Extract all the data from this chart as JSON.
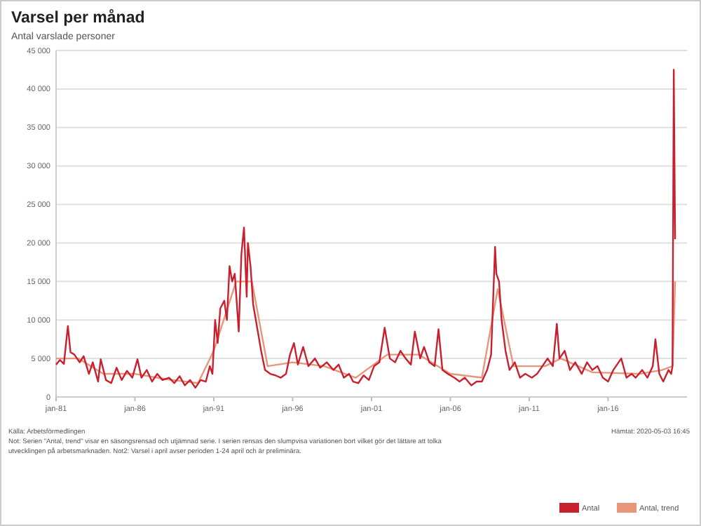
{
  "chart_data": {
    "type": "line",
    "title": "Varsel per månad",
    "subtitle": "Antal varslade personer",
    "annotations": [
      "Källa: Arbetsförmedlingen",
      "Not: Serien \"Antal, trend\" visar en säsongsrensad och utjämnad serie. I serien rensas den slumpvisa variationen bort vilket gör det lättare att tolka utvecklingen på arbetsmarknaden. Not2: Varsel i april avser perioden 1-24 april och är preliminära.",
      "Hämtat: 2020-05-03 16:45"
    ],
    "xlim": [
      "1981-01",
      "2021-01"
    ],
    "xticks": [
      {
        "value": "1981-01",
        "label": "jan-81"
      },
      {
        "value": "1986-01",
        "label": "jan-86"
      },
      {
        "value": "1991-01",
        "label": "jan-91"
      },
      {
        "value": "1996-01",
        "label": "jan-96"
      },
      {
        "value": "2001-01",
        "label": "jan-01"
      },
      {
        "value": "2006-01",
        "label": "jan-06"
      },
      {
        "value": "2011-01",
        "label": "jan-11"
      },
      {
        "value": "2016-01",
        "label": "jan-16"
      }
    ],
    "ylim": [
      0,
      45000
    ],
    "yticks": [
      {
        "value": 0,
        "label": "0"
      },
      {
        "value": 5000,
        "label": "5 000"
      },
      {
        "value": 10000,
        "label": "10 000"
      },
      {
        "value": 15000,
        "label": "15 000"
      },
      {
        "value": 20000,
        "label": "20 000"
      },
      {
        "value": 25000,
        "label": "25 000"
      },
      {
        "value": 30000,
        "label": "30 000"
      },
      {
        "value": 35000,
        "label": "35 000"
      },
      {
        "value": 40000,
        "label": "40 000"
      },
      {
        "value": 45000,
        "label": "45 000"
      }
    ],
    "grid": "y",
    "legend": "bottom right",
    "line_style": "solid",
    "series": [
      {
        "name": "Antal, trend",
        "color": "#e8957a",
        "x": [
          "1981-01",
          "1982-06",
          "1984-01",
          "1986-01",
          "1988-01",
          "1990-01",
          "1991-01",
          "1992-06",
          "1993-06",
          "1994-06",
          "1996-01",
          "1998-01",
          "2000-01",
          "2002-01",
          "2004-01",
          "2006-01",
          "2008-01",
          "2009-01",
          "2010-01",
          "2012-01",
          "2013-01",
          "2015-01",
          "2018-01",
          "2019-06",
          "2020-02",
          "2020-03",
          "2020-04"
        ],
        "values": [
          5000,
          5000,
          3000,
          3000,
          2300,
          1800,
          6000,
          15000,
          15000,
          4000,
          4500,
          4000,
          2500,
          5500,
          5500,
          3000,
          2500,
          14000,
          4000,
          4000,
          5000,
          3200,
          3000,
          3500,
          4000,
          9000,
          15000
        ]
      },
      {
        "name": "Antal",
        "color": "#c8202f",
        "x": [
          "1981-01",
          "1981-04",
          "1981-07",
          "1981-10",
          "1981-12",
          "1982-03",
          "1982-07",
          "1982-10",
          "1983-02",
          "1983-05",
          "1983-09",
          "1983-11",
          "1984-03",
          "1984-07",
          "1984-11",
          "1985-03",
          "1985-07",
          "1985-11",
          "1986-03",
          "1986-06",
          "1986-10",
          "1987-02",
          "1987-06",
          "1987-10",
          "1988-03",
          "1988-07",
          "1988-11",
          "1989-03",
          "1989-07",
          "1989-11",
          "1990-03",
          "1990-07",
          "1990-10",
          "1990-12",
          "1991-02",
          "1991-04",
          "1991-06",
          "1991-09",
          "1991-11",
          "1992-01",
          "1992-03",
          "1992-05",
          "1992-08",
          "1992-10",
          "1992-12",
          "1993-02",
          "1993-03",
          "1993-05",
          "1993-07",
          "1993-09",
          "1993-11",
          "1994-01",
          "1994-04",
          "1994-08",
          "1994-12",
          "1995-04",
          "1995-08",
          "1995-11",
          "1996-02",
          "1996-05",
          "1996-09",
          "1997-01",
          "1997-06",
          "1997-10",
          "1998-03",
          "1998-08",
          "1998-12",
          "1999-04",
          "1999-08",
          "1999-11",
          "2000-03",
          "2000-07",
          "2000-11",
          "2001-03",
          "2001-07",
          "2001-11",
          "2002-03",
          "2002-07",
          "2002-11",
          "2003-03",
          "2003-07",
          "2003-10",
          "2004-02",
          "2004-05",
          "2004-09",
          "2005-01",
          "2005-04",
          "2005-07",
          "2005-11",
          "2006-04",
          "2006-08",
          "2006-12",
          "2007-05",
          "2007-09",
          "2008-01",
          "2008-05",
          "2008-08",
          "2008-11",
          "2008-12",
          "2009-02",
          "2009-04",
          "2009-07",
          "2009-10",
          "2010-02",
          "2010-06",
          "2010-10",
          "2011-03",
          "2011-07",
          "2011-11",
          "2012-03",
          "2012-07",
          "2012-10",
          "2012-12",
          "2013-04",
          "2013-08",
          "2013-12",
          "2014-05",
          "2014-09",
          "2015-01",
          "2015-05",
          "2015-09",
          "2016-01",
          "2016-05",
          "2016-11",
          "2017-03",
          "2017-07",
          "2017-10",
          "2018-03",
          "2018-07",
          "2018-11",
          "2019-01",
          "2019-04",
          "2019-07",
          "2019-11",
          "2020-01",
          "2020-02",
          "2020-03",
          "2020-04"
        ],
        "values": [
          4200,
          4800,
          4300,
          9200,
          5800,
          5500,
          4500,
          5300,
          3000,
          4500,
          2000,
          4900,
          2200,
          1800,
          3800,
          2200,
          3400,
          2500,
          4900,
          2500,
          3500,
          2000,
          3000,
          2200,
          2500,
          1800,
          2700,
          1500,
          2200,
          1200,
          2200,
          2000,
          4000,
          3000,
          10000,
          7000,
          11500,
          12500,
          10000,
          17000,
          15000,
          16000,
          8500,
          18500,
          22000,
          13000,
          20000,
          17000,
          12000,
          10000,
          8000,
          6000,
          3500,
          3000,
          2800,
          2500,
          3000,
          5500,
          7000,
          4200,
          6500,
          4000,
          5000,
          3800,
          4500,
          3500,
          4200,
          2500,
          3000,
          2000,
          1800,
          2800,
          2200,
          4000,
          4500,
          9000,
          5000,
          4500,
          6000,
          5000,
          4200,
          8500,
          5000,
          6500,
          4500,
          4000,
          8800,
          3500,
          3000,
          2500,
          2000,
          2500,
          1500,
          2000,
          2000,
          3500,
          5500,
          19500,
          16000,
          15000,
          10000,
          6000,
          3500,
          4500,
          2500,
          3000,
          2500,
          3000,
          4000,
          5000,
          4000,
          9500,
          5000,
          6000,
          3500,
          4500,
          3000,
          4500,
          3500,
          4000,
          2500,
          2000,
          3500,
          5000,
          2500,
          3000,
          2500,
          3500,
          2500,
          4000,
          7500,
          3000,
          2000,
          3500,
          3000,
          4000,
          42500,
          20500
        ]
      }
    ]
  }
}
